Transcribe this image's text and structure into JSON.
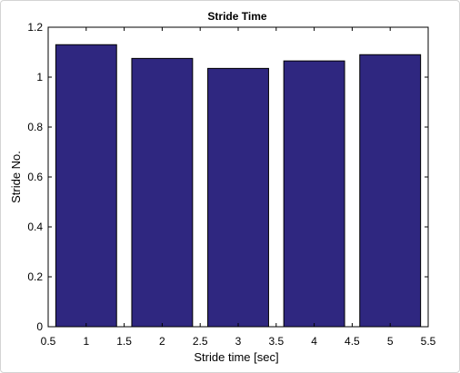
{
  "chart_data": {
    "type": "bar",
    "title": "Stride Time",
    "xlabel": "Stride time [sec]",
    "ylabel": "Stride No.",
    "x": [
      1,
      2,
      3,
      4,
      5
    ],
    "values": [
      1.13,
      1.075,
      1.035,
      1.065,
      1.09
    ],
    "xlim": [
      0.5,
      5.5
    ],
    "ylim": [
      0,
      1.2
    ],
    "xticks": [
      "0.5",
      "1",
      "1.5",
      "2",
      "2.5",
      "3",
      "3.5",
      "4",
      "4.5",
      "5",
      "5.5"
    ],
    "yticks": [
      "0",
      "0.2",
      "0.4",
      "0.6",
      "0.8",
      "1",
      "1.2"
    ],
    "bar_color": "#2f2780",
    "grid": false
  }
}
